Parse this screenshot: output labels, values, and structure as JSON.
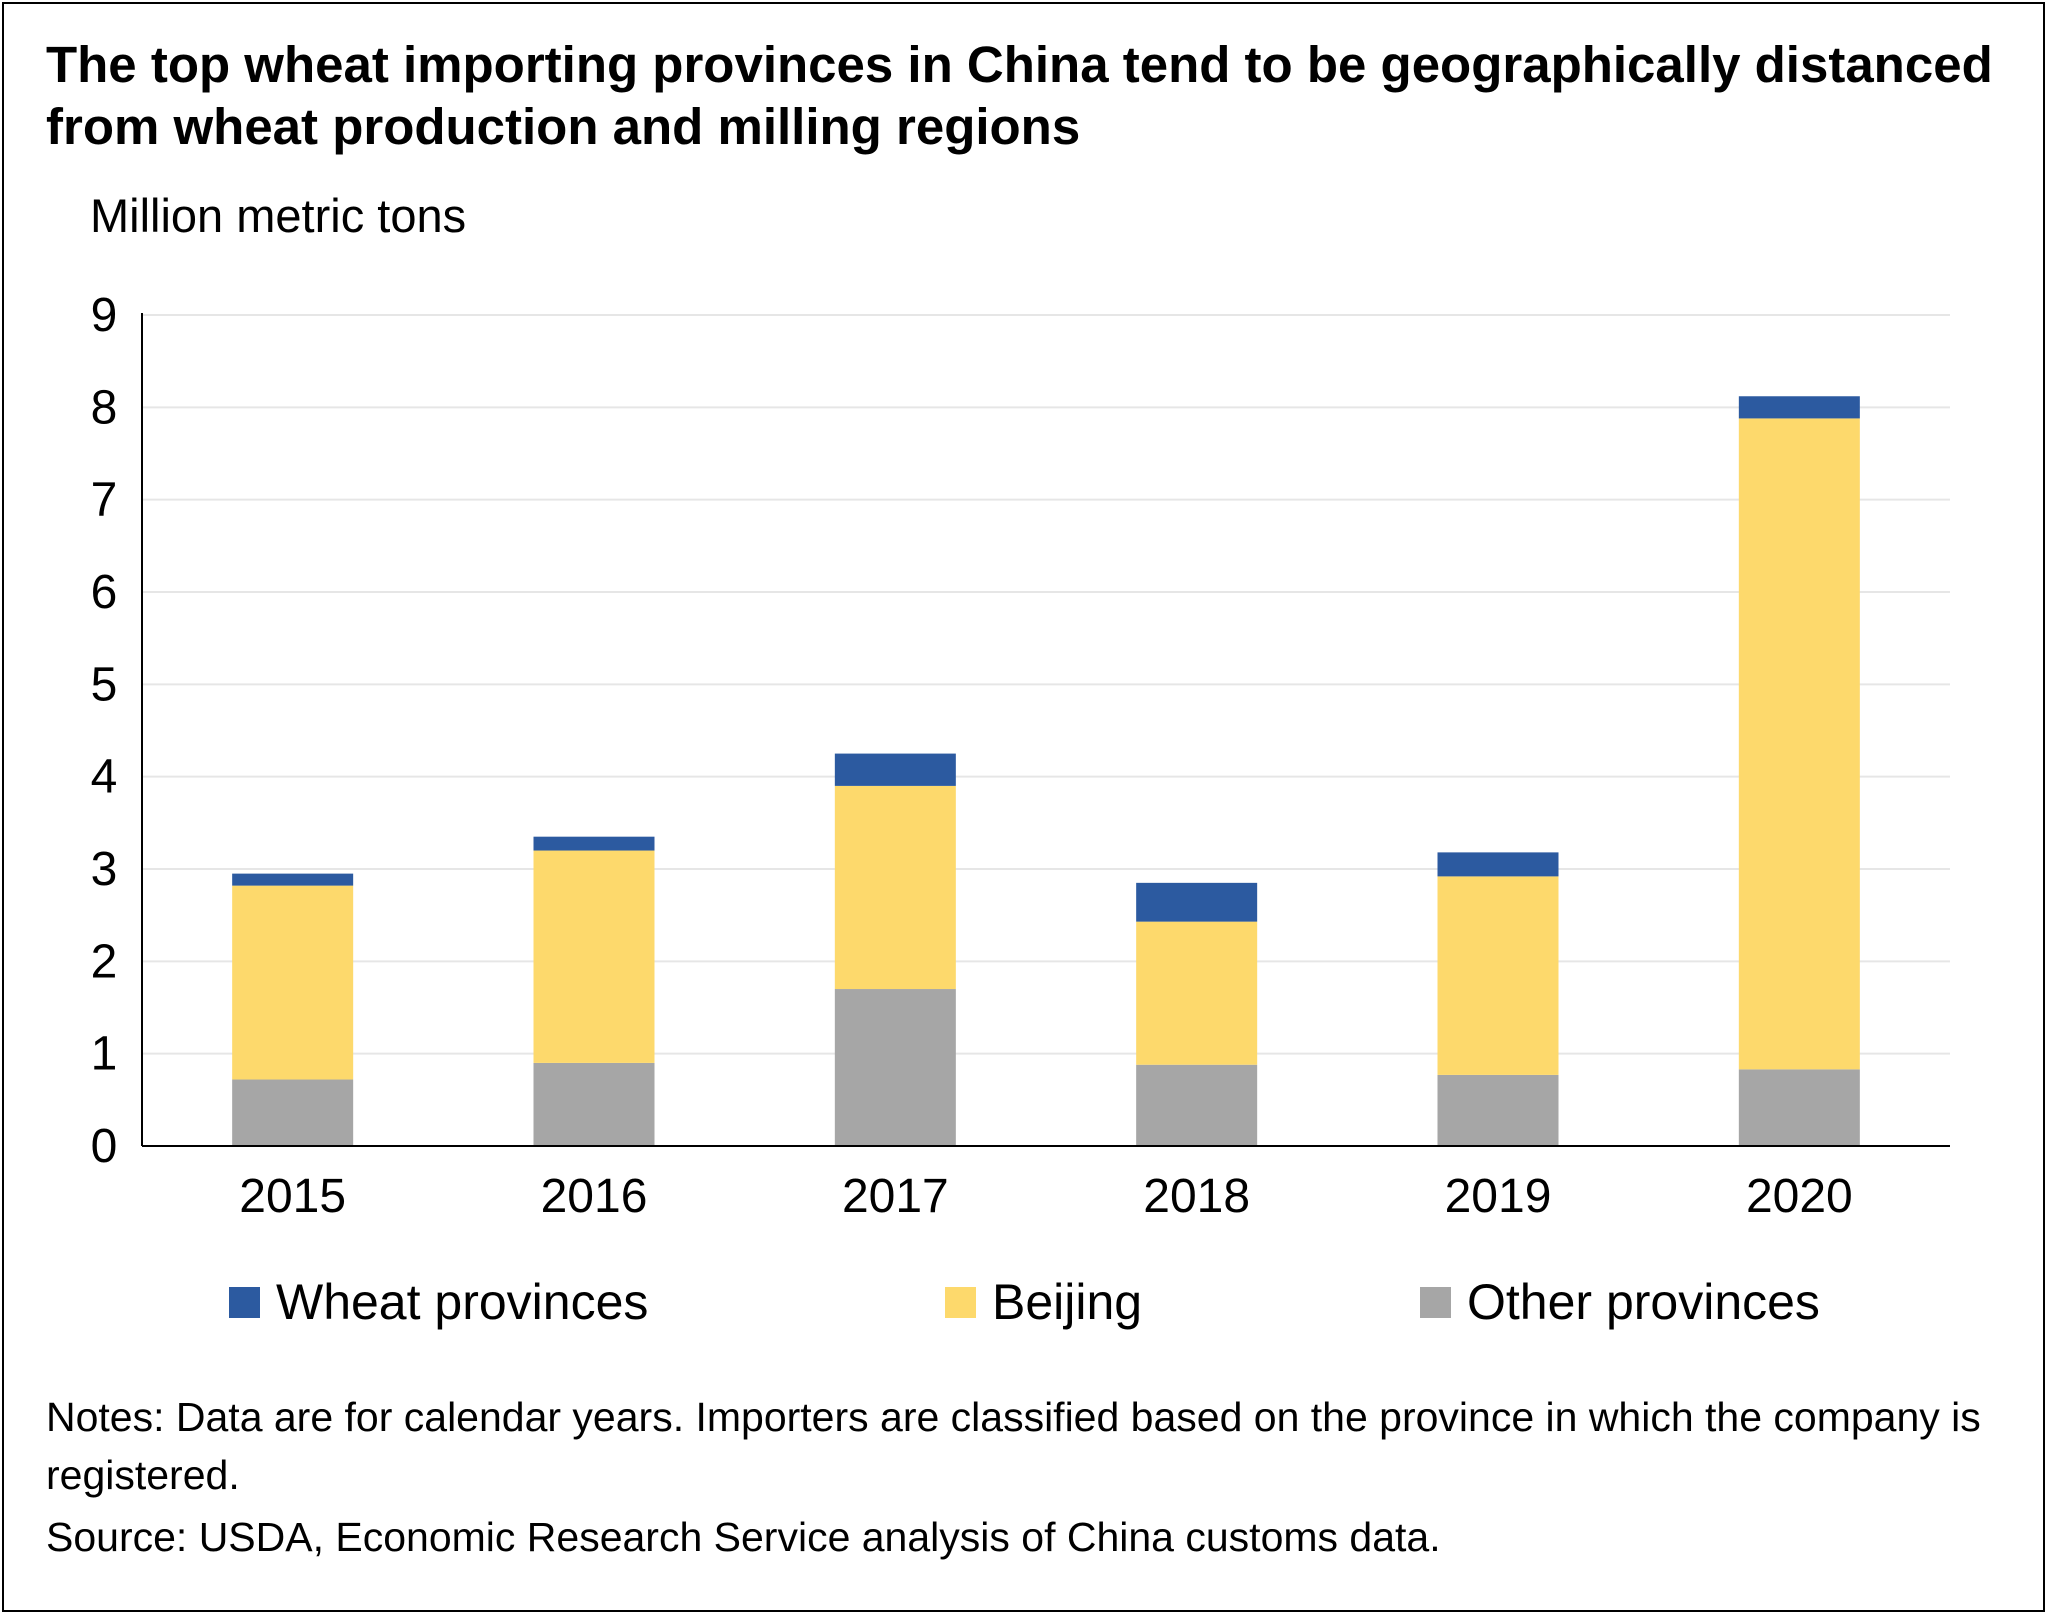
{
  "title": "The top wheat importing provinces in China tend to be geographically distanced from wheat production and milling regions",
  "notes": "Notes: Data are for calendar years. Importers are classified based on the province in which the company is registered.",
  "source": "Source: USDA, Economic Research Service analysis of China customs data.",
  "colors": {
    "wheat_provinces": "#2c5aa0",
    "beijing": "#fdd96c",
    "other_provinces": "#a6a6a6",
    "gridline": "#e6e6e6"
  },
  "chart_data": {
    "type": "bar",
    "stacked": true,
    "title": "The top wheat importing provinces in China tend to be geographically distanced from wheat production and milling regions",
    "ylabel": "Million metric tons",
    "xlabel": "",
    "categories": [
      "2015",
      "2016",
      "2017",
      "2018",
      "2019",
      "2020"
    ],
    "ylim": [
      0,
      9
    ],
    "yticks": [
      "0",
      "1",
      "2",
      "3",
      "4",
      "5",
      "6",
      "7",
      "8",
      "9"
    ],
    "grid": true,
    "legend_position": "bottom",
    "series": [
      {
        "name": "Other provinces",
        "color_key": "other_provinces",
        "values": [
          0.72,
          0.9,
          1.7,
          0.88,
          0.77,
          0.83
        ]
      },
      {
        "name": "Beijing",
        "color_key": "beijing",
        "values": [
          2.1,
          2.3,
          2.2,
          1.55,
          2.15,
          7.05
        ]
      },
      {
        "name": "Wheat provinces",
        "color_key": "wheat_provinces",
        "values": [
          0.13,
          0.15,
          0.35,
          0.42,
          0.26,
          0.24
        ]
      }
    ],
    "legend": [
      "Wheat provinces",
      "Beijing",
      "Other provinces"
    ]
  }
}
